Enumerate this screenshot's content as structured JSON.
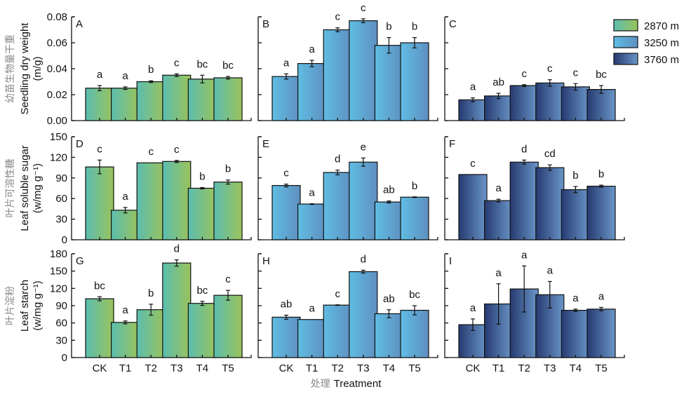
{
  "chart_data": {
    "type": "bar",
    "layout": "3x3 grid of grouped panels (rows = variables, columns = altitude)",
    "categories": [
      "CK",
      "T1",
      "T2",
      "T3",
      "T4",
      "T5"
    ],
    "xlabel_cn": "处理",
    "xlabel": "Treatment",
    "legend": {
      "placement": "top-right",
      "entries": [
        {
          "label": "2870 m",
          "colors": [
            "#5bbdb0",
            "#9bc35a"
          ]
        },
        {
          "label": "3250 m",
          "colors": [
            "#5fbde3",
            "#5f8fc0"
          ]
        },
        {
          "label": "3760 m",
          "colors": [
            "#263a70",
            "#6a96c8"
          ]
        }
      ]
    },
    "rows": [
      {
        "ylabel_cn": "幼苗生物量干重",
        "ylabel": "Seedling dry weight",
        "yunit": "(m/g)",
        "ylim": [
          0,
          0.08
        ],
        "yticks": [
          "0.00",
          "0.02",
          "0.04",
          "0.06",
          "0.08"
        ],
        "ytick_values": [
          0,
          0.02,
          0.04,
          0.06,
          0.08
        ]
      },
      {
        "ylabel_cn": "叶片可溶性糖",
        "ylabel": "Leaf soluble sugar",
        "yunit": "(w/mg g⁻¹)",
        "ylim": [
          0,
          150
        ],
        "yticks": [
          "0",
          "30",
          "60",
          "90",
          "120",
          "150"
        ],
        "ytick_values": [
          0,
          30,
          60,
          90,
          120,
          150
        ]
      },
      {
        "ylabel_cn": "叶片淀粉",
        "ylabel": "Leaf starch",
        "yunit": "(w/mg g⁻¹)",
        "ylim": [
          0,
          180
        ],
        "yticks": [
          "0",
          "30",
          "60",
          "90",
          "120",
          "150",
          "180"
        ],
        "ytick_values": [
          0,
          30,
          60,
          90,
          120,
          150,
          180
        ]
      }
    ],
    "panels": [
      {
        "id": "A",
        "row": 0,
        "col": 0,
        "series": "2870 m",
        "values": [
          0.025,
          0.025,
          0.03,
          0.035,
          0.032,
          0.033
        ],
        "errors": [
          0.002,
          0.001,
          0.0007,
          0.001,
          0.003,
          0.001
        ],
        "letters": [
          "a",
          "a",
          "b",
          "c",
          "bc",
          "bc"
        ]
      },
      {
        "id": "B",
        "row": 0,
        "col": 1,
        "series": "3250 m",
        "values": [
          0.034,
          0.044,
          0.07,
          0.077,
          0.058,
          0.06
        ],
        "errors": [
          0.002,
          0.0025,
          0.0015,
          0.0015,
          0.006,
          0.004
        ],
        "letters": [
          "a",
          "a",
          "c",
          "c",
          "b",
          "b"
        ]
      },
      {
        "id": "C",
        "row": 0,
        "col": 2,
        "series": "3760 m",
        "values": [
          0.016,
          0.019,
          0.027,
          0.029,
          0.026,
          0.024
        ],
        "errors": [
          0.0015,
          0.002,
          0.0007,
          0.0025,
          0.0025,
          0.003
        ],
        "letters": [
          "a",
          "ab",
          "c",
          "c",
          "c",
          "bc"
        ]
      },
      {
        "id": "D",
        "row": 1,
        "col": 0,
        "series": "2870 m",
        "values": [
          106,
          43,
          112,
          114,
          75,
          84
        ],
        "errors": [
          10,
          4,
          0,
          1.5,
          1,
          3
        ],
        "letters": [
          "c",
          "a",
          "c",
          "c",
          "b",
          "b"
        ]
      },
      {
        "id": "E",
        "row": 1,
        "col": 1,
        "series": "3250 m",
        "values": [
          79,
          52,
          98,
          113,
          55,
          62
        ],
        "errors": [
          2,
          0.5,
          3.5,
          6,
          1.5,
          0.5
        ],
        "letters": [
          "c",
          "a",
          "d",
          "e",
          "ab",
          "b"
        ]
      },
      {
        "id": "F",
        "row": 1,
        "col": 2,
        "series": "3760 m",
        "values": [
          95,
          57,
          113,
          105,
          73,
          78
        ],
        "errors": [
          0,
          2,
          3,
          4,
          4.5,
          1.5
        ],
        "letters": [
          "c",
          "a",
          "d",
          "cd",
          "b",
          "b"
        ]
      },
      {
        "id": "G",
        "row": 2,
        "col": 0,
        "series": "2870 m",
        "values": [
          102,
          61,
          83,
          164,
          94,
          108
        ],
        "errors": [
          3.5,
          2.5,
          9.5,
          5.5,
          3.5,
          8.5
        ],
        "letters": [
          "bc",
          "a",
          "b",
          "d",
          "bc",
          "c"
        ]
      },
      {
        "id": "H",
        "row": 2,
        "col": 1,
        "series": "3250 m",
        "values": [
          70,
          66,
          91,
          149,
          76,
          82
        ],
        "errors": [
          3.5,
          0,
          0.5,
          2.5,
          7,
          8
        ],
        "letters": [
          "ab",
          "a",
          "c",
          "d",
          "ab",
          "bc"
        ]
      },
      {
        "id": "I",
        "row": 2,
        "col": 2,
        "series": "3760 m",
        "values": [
          57,
          93,
          119,
          109,
          82,
          84
        ],
        "errors": [
          10,
          35,
          40,
          23,
          2,
          3
        ],
        "letters": [
          "a",
          "a",
          "a",
          "a",
          "a",
          "a"
        ]
      }
    ]
  }
}
